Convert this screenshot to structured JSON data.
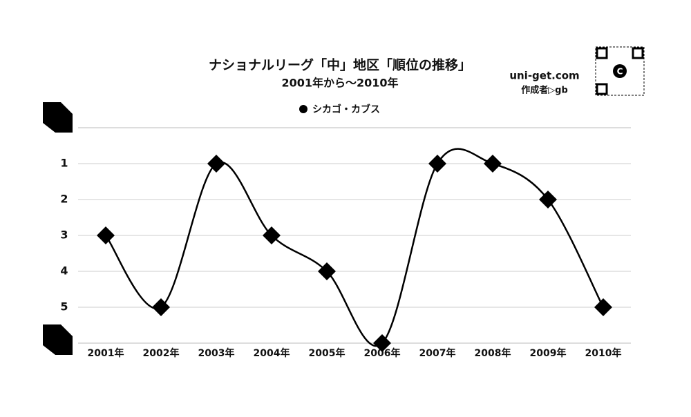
{
  "chart_data": {
    "type": "line",
    "title": "ナショナルリーグ「中」地区「順位の推移」",
    "subtitle": "2001年から～2010年",
    "site": "uni-get.com",
    "author": "作成者▷gb",
    "categories": [
      "2001年",
      "2002年",
      "2003年",
      "2004年",
      "2005年",
      "2006年",
      "2007年",
      "2008年",
      "2009年",
      "2010年"
    ],
    "series": [
      {
        "name": "シカゴ・カブス",
        "color": "#000000",
        "values": [
          3,
          5,
          1,
          3,
          4,
          6,
          1,
          1,
          2,
          5
        ]
      }
    ],
    "ylim": [
      0,
      6
    ],
    "yticks": [
      1,
      2,
      3,
      4,
      5
    ],
    "y_inverted": true,
    "grid": true,
    "smooth": true,
    "legend": "top"
  }
}
